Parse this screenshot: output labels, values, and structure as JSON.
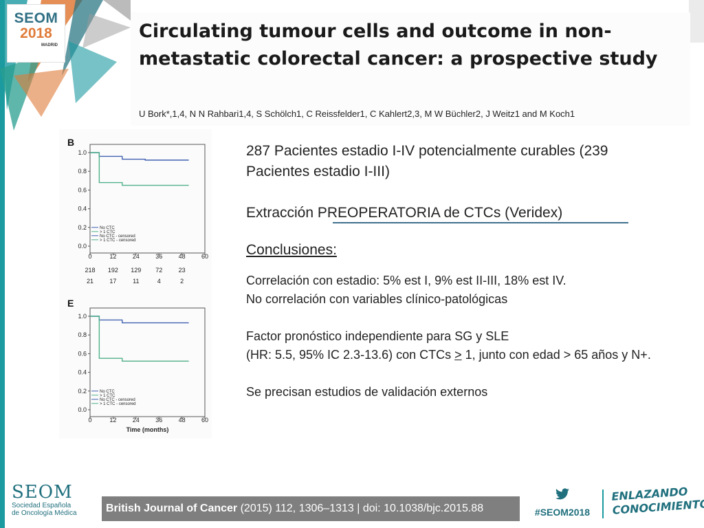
{
  "branding": {
    "logo_line1": "SEOM",
    "logo_line2": "2018",
    "logo_city": "MADRID",
    "footer_org": "SEOM",
    "footer_org_sub1": "Sociedad Española",
    "footer_org_sub2": "de Oncología Médica",
    "hashtag": "#SEOM2018",
    "slogan_line1": "ENLAZANDO",
    "slogan_line2": "CONOCIMIENTO"
  },
  "article": {
    "title": "Circulating tumour cells and outcome in non-metastatic colorectal cancer: a prospective study",
    "authors": "U Bork*,1,4, N N Rahbari1,4, S Schölch1, C Reissfelder1, C Kahlert2,3, M W Büchler2, J Weitz1 and M Koch1"
  },
  "content": {
    "line1": "287 Pacientes estadio I-IV potencialmente curables (239 Pacientes estadio I-III)",
    "line2": "Extracción PREOPERATORIA de CTCs (Veridex)",
    "conclusions_heading": "Conclusiones:",
    "c1a": "Correlación con estadio: 5% est I, 9% est II-III, 18% est IV.",
    "c1b": "No correlación con variables clínico-patológicas",
    "c2a": "Factor pronóstico independiente para SG y SLE",
    "c2b_pre": "(HR: 5.5, 95% IC 2.3-13.6) con CTCs ",
    "c2b_ge": ">",
    "c2b_post": " 1, junto con edad > 65 años y N+.",
    "c3": "Se precisan estudios de validación externos"
  },
  "footer": {
    "journal_name": "British Journal of Cancer",
    "journal_ref": " (2015) 112, 1306–1313 | doi: 10.1038/bjc.2015.88"
  },
  "colors": {
    "teal": "#1b9aa0",
    "blue_curve": "#3f5faf",
    "green_curve": "#4fb08a"
  },
  "chart_data": [
    {
      "type": "line",
      "panel_label": "B",
      "x": [
        0,
        12,
        24,
        36,
        48
      ],
      "series": [
        {
          "values": [
            1.0,
            0.96,
            0.93,
            0.92,
            0.92
          ]
        },
        {
          "values": [
            1.0,
            0.68,
            0.65,
            0.65,
            0.65
          ]
        }
      ],
      "legend": [
        "No CTC",
        "> 1 CTC",
        "No CTC - censored",
        "> 1 CTC - censored"
      ],
      "legend_placement": "bottom-left",
      "xlim": [
        0,
        60
      ],
      "ylim": [
        0,
        1
      ],
      "yticks": [
        "1.0",
        "0.8",
        "0.6",
        "0.4",
        "0.2",
        "0.0"
      ],
      "xticks": [
        "0",
        "12",
        "24",
        "36",
        "48",
        "60"
      ],
      "risk_row1": [
        "218",
        "192",
        "129",
        "72",
        "23"
      ],
      "risk_row2": [
        "21",
        "17",
        "11",
        "4",
        "2"
      ],
      "xlabel": ""
    },
    {
      "type": "line",
      "panel_label": "E",
      "x": [
        0,
        12,
        24,
        36,
        48
      ],
      "series": [
        {
          "values": [
            1.0,
            0.96,
            0.93,
            0.93,
            0.93
          ]
        },
        {
          "values": [
            1.0,
            0.55,
            0.52,
            0.52,
            0.52
          ]
        }
      ],
      "legend": [
        "No CTC",
        "> 1 CTC",
        "No CTC - censored",
        "> 1 CTC - censored"
      ],
      "legend_placement": "bottom-left",
      "xlim": [
        0,
        60
      ],
      "ylim": [
        0,
        1
      ],
      "yticks": [
        "1.0",
        "0.8",
        "0.6",
        "0.4",
        "0.2",
        "0.0"
      ],
      "xticks": [
        "0",
        "12",
        "24",
        "36",
        "48",
        "60"
      ],
      "xlabel": "Time (months)"
    }
  ]
}
